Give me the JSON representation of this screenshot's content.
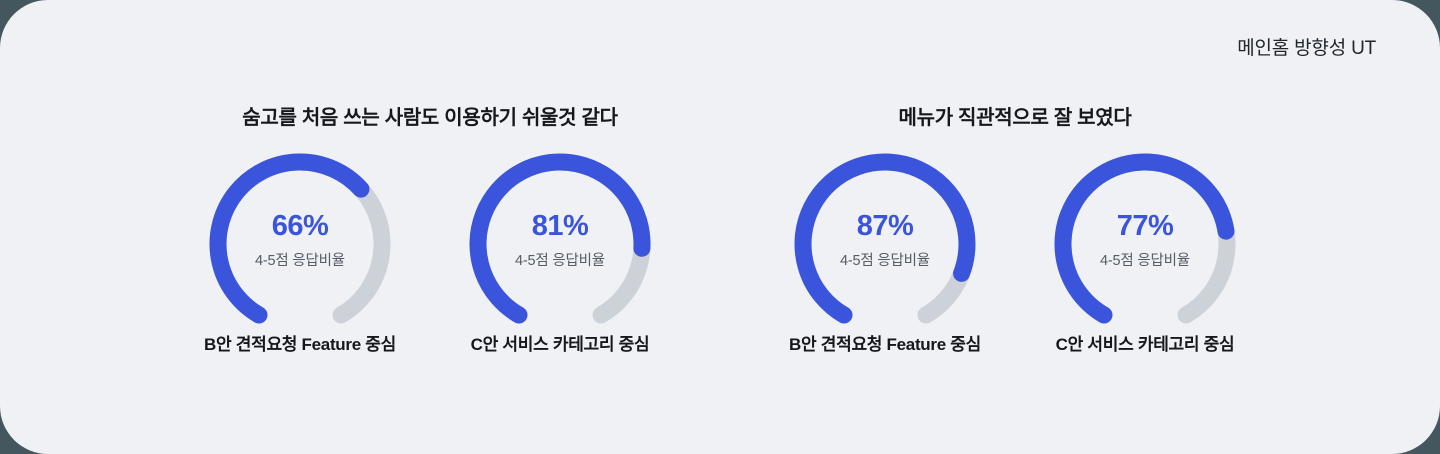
{
  "header": {
    "title": "메인홈 방향성 UT"
  },
  "colors": {
    "page_bg": "#44575F",
    "card_bg": "#F0F1F4",
    "accent_blue": "#3B54DC",
    "track_gray": "#CDD2D9",
    "title_text": "#15181C",
    "caption_text": "#565D66"
  },
  "chart_data": [
    {
      "type": "gauge",
      "title": "숨고를 처음 쓰는 사람도 이용하기 쉬울것 같다",
      "unit": "%",
      "caption": "4-5점 응답비율",
      "series": [
        {
          "name": "B안 견적요청 Feature 중심",
          "value": 66,
          "label": "66%"
        },
        {
          "name": "C안 서비스 카테고리 중심",
          "value": 81,
          "label": "81%"
        }
      ]
    },
    {
      "type": "gauge",
      "title": "메뉴가 직관적으로 잘 보였다",
      "unit": "%",
      "caption": "4-5점 응답비율",
      "series": [
        {
          "name": "B안 견적요청 Feature 중심",
          "value": 87,
          "label": "87%"
        },
        {
          "name": "C안 서비스 카테고리 중심",
          "value": 77,
          "label": "77%"
        }
      ]
    }
  ]
}
